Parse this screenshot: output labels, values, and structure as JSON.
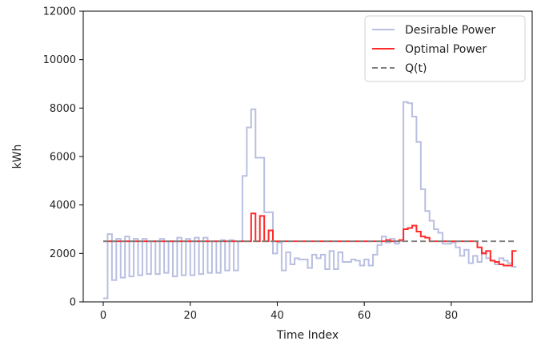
{
  "chart_data": {
    "type": "line",
    "title": "",
    "xlabel": "Time Index",
    "ylabel": "kWh",
    "xlim": [
      -4.6,
      98.6
    ],
    "ylim": [
      0,
      12000
    ],
    "x_ticks": [
      0,
      20,
      40,
      60,
      80
    ],
    "y_ticks": [
      0,
      2000,
      4000,
      6000,
      8000,
      10000,
      12000
    ],
    "grid": false,
    "legend_position": "top-right",
    "drawstyle": "steps-post",
    "series": [
      {
        "name": "Desirable Power",
        "color": "#b9bfe0",
        "style": "solid",
        "x": [
          0,
          1,
          2,
          3,
          4,
          5,
          6,
          7,
          8,
          9,
          10,
          11,
          12,
          13,
          14,
          15,
          16,
          17,
          18,
          19,
          20,
          21,
          22,
          23,
          24,
          25,
          26,
          27,
          28,
          29,
          30,
          31,
          32,
          33,
          34,
          35,
          36,
          37,
          38,
          39,
          40,
          41,
          42,
          43,
          44,
          45,
          46,
          47,
          48,
          49,
          50,
          51,
          52,
          53,
          54,
          55,
          56,
          57,
          58,
          59,
          60,
          61,
          62,
          63,
          64,
          65,
          66,
          67,
          68,
          69,
          70,
          71,
          72,
          73,
          74,
          75,
          76,
          77,
          78,
          79,
          80,
          81,
          82,
          83,
          84,
          85,
          86,
          87,
          88,
          89,
          90,
          91,
          92,
          93,
          94,
          95
        ],
        "values": [
          150,
          2800,
          900,
          2600,
          1000,
          2700,
          1050,
          2600,
          1100,
          2600,
          1150,
          2500,
          1150,
          2600,
          1200,
          2500,
          1050,
          2650,
          1100,
          2600,
          1100,
          2650,
          1150,
          2650,
          1200,
          2500,
          1200,
          2550,
          1300,
          2550,
          1300,
          2500,
          5200,
          7200,
          7950,
          5950,
          5950,
          3700,
          3700,
          2000,
          2450,
          1300,
          2050,
          1550,
          1800,
          1750,
          1750,
          1400,
          1950,
          1800,
          1950,
          1350,
          2100,
          1350,
          2050,
          1650,
          1650,
          1750,
          1700,
          1500,
          1750,
          1500,
          1950,
          2350,
          2700,
          2450,
          2600,
          2400,
          2500,
          8250,
          8200,
          7650,
          6600,
          4650,
          3750,
          3350,
          3000,
          2850,
          2400,
          2400,
          2450,
          2250,
          1900,
          2150,
          1600,
          1900,
          1650,
          2050,
          1800,
          1700,
          1550,
          1800,
          1700,
          1600,
          1450,
          1450
        ]
      },
      {
        "name": "Optimal Power",
        "color": "#ff2a2a",
        "style": "solid",
        "x": [
          0,
          1,
          2,
          3,
          4,
          5,
          6,
          7,
          8,
          9,
          10,
          11,
          12,
          13,
          14,
          15,
          16,
          17,
          18,
          19,
          20,
          21,
          22,
          23,
          24,
          25,
          26,
          27,
          28,
          29,
          30,
          31,
          32,
          33,
          34,
          35,
          36,
          37,
          38,
          39,
          40,
          41,
          42,
          43,
          44,
          45,
          46,
          47,
          48,
          49,
          50,
          51,
          52,
          53,
          54,
          55,
          56,
          57,
          58,
          59,
          60,
          61,
          62,
          63,
          64,
          65,
          66,
          67,
          68,
          69,
          70,
          71,
          72,
          73,
          74,
          75,
          76,
          77,
          78,
          79,
          80,
          81,
          82,
          83,
          84,
          85,
          86,
          87,
          88,
          89,
          90,
          91,
          92,
          93,
          94,
          95
        ],
        "values": [
          2500,
          2500,
          2500,
          2500,
          2500,
          2500,
          2500,
          2500,
          2500,
          2500,
          2500,
          2500,
          2500,
          2500,
          2500,
          2500,
          2500,
          2500,
          2500,
          2500,
          2500,
          2500,
          2500,
          2500,
          2500,
          2500,
          2500,
          2500,
          2500,
          2500,
          2500,
          2500,
          2500,
          2500,
          3650,
          2500,
          3550,
          2500,
          2950,
          2500,
          2500,
          2500,
          2500,
          2500,
          2500,
          2500,
          2500,
          2500,
          2500,
          2500,
          2500,
          2500,
          2500,
          2500,
          2500,
          2500,
          2500,
          2500,
          2500,
          2500,
          2500,
          2500,
          2500,
          2500,
          2500,
          2550,
          2500,
          2500,
          2550,
          3000,
          3050,
          3150,
          2900,
          2700,
          2650,
          2500,
          2500,
          2500,
          2500,
          2500,
          2500,
          2500,
          2500,
          2500,
          2500,
          2500,
          2250,
          2000,
          2100,
          1700,
          1650,
          1550,
          1500,
          1500,
          2100,
          2100
        ]
      },
      {
        "name": "Q(t)",
        "color": "#7f7f7f",
        "style": "dashed",
        "x": [
          0,
          95
        ],
        "values": [
          2500,
          2500
        ]
      }
    ]
  }
}
